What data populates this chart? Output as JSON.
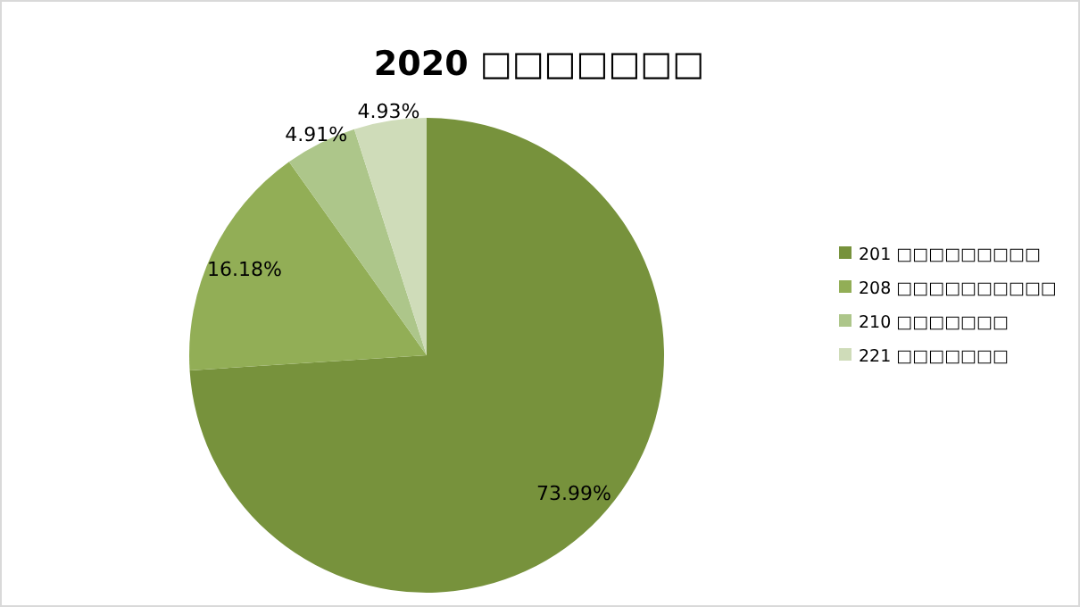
{
  "chart_data": {
    "type": "pie",
    "title": "2020 □□□□□□□",
    "categories": [
      "201 □□□□□□□□□",
      "208 □□□□□□□□□□",
      "210 □□□□□□□",
      "221 □□□□□□□"
    ],
    "values": [
      73.99,
      16.18,
      4.91,
      4.93
    ],
    "value_labels": [
      "73.99%",
      "16.18%",
      "4.91%",
      "4.93%"
    ],
    "colors": [
      "#77923c",
      "#92ae56",
      "#adc68a",
      "#cfdcb9"
    ],
    "legend": "right"
  }
}
